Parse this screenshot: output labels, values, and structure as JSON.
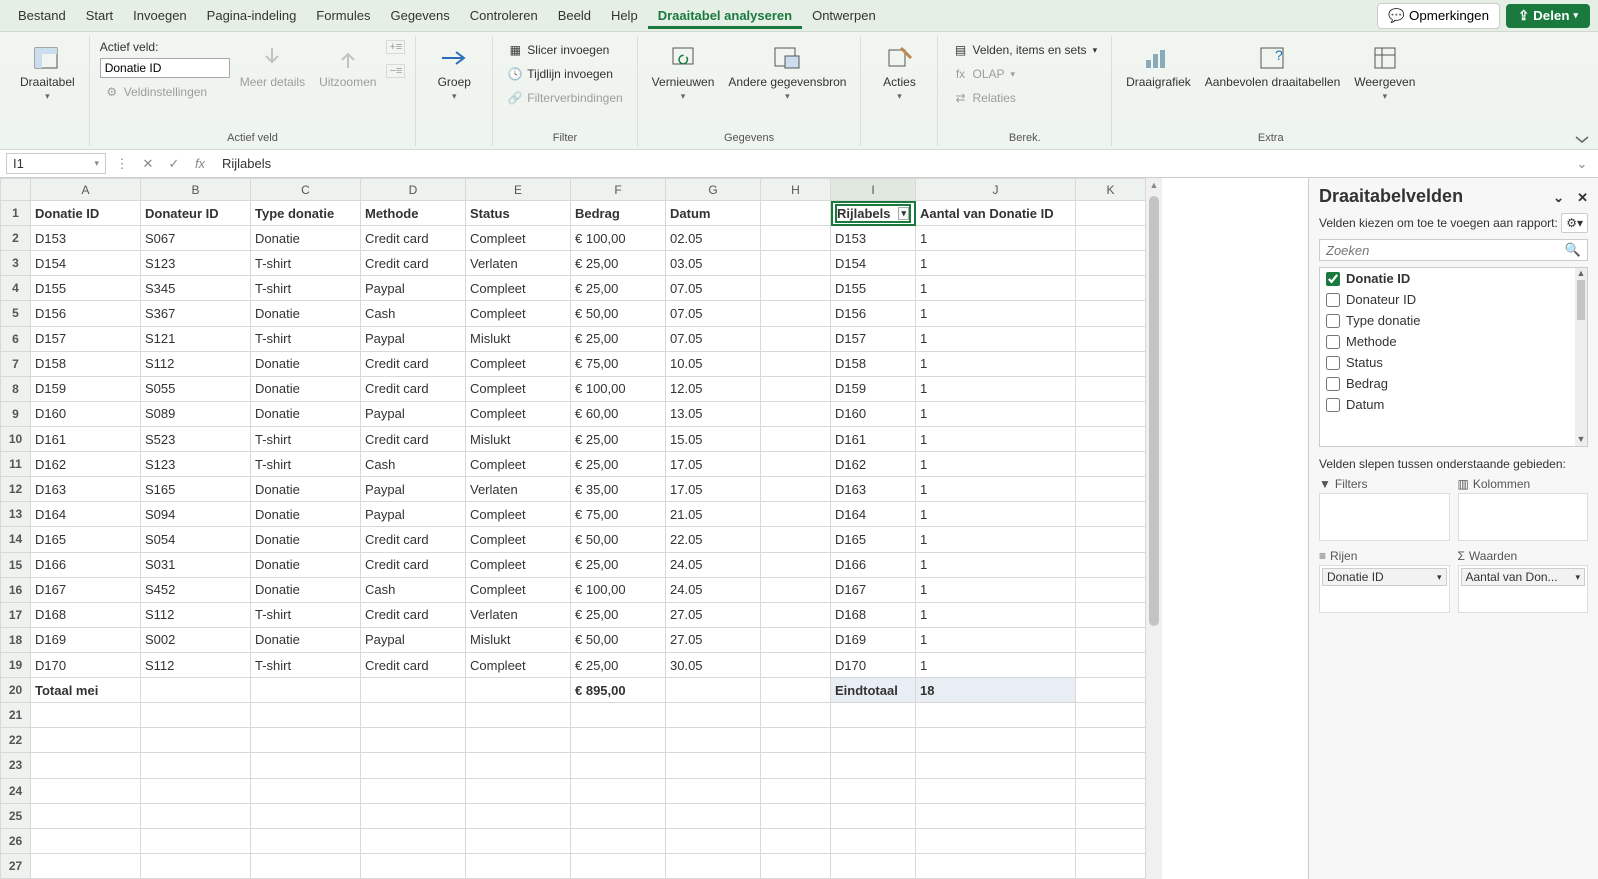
{
  "menu": {
    "items": [
      "Bestand",
      "Start",
      "Invoegen",
      "Pagina-indeling",
      "Formules",
      "Gegevens",
      "Controleren",
      "Beeld",
      "Help",
      "Draaitabel analyseren",
      "Ontwerpen"
    ],
    "active": "Draaitabel analyseren",
    "comments": "Opmerkingen",
    "share": "Delen"
  },
  "ribbon": {
    "g1": {
      "label": "",
      "pivot": "Draaitabel"
    },
    "g2": {
      "label": "Actief veld",
      "activeField": "Actief veld:",
      "fieldValue": "Donatie ID",
      "settings": "Veldinstellingen",
      "more": "Meer details",
      "zoomout": "Uitzoomen"
    },
    "g3": {
      "group": "Groep"
    },
    "g4": {
      "label": "Filter",
      "slicer": "Slicer invoegen",
      "timeline": "Tijdlijn invoegen",
      "connections": "Filterverbindingen"
    },
    "g5": {
      "label": "Gegevens",
      "refresh": "Vernieuwen",
      "otherSource": "Andere gegevensbron"
    },
    "g6": {
      "actions": "Acties"
    },
    "g7": {
      "label": "Berek.",
      "fields": "Velden, items en sets",
      "olap": "OLAP",
      "relations": "Relaties"
    },
    "g8": {
      "label": "Extra",
      "pivotchart": "Draaigrafiek",
      "recommended": "Aanbevolen draaitabellen",
      "show": "Weergeven"
    }
  },
  "formulaBar": {
    "nameBox": "I1",
    "formula": "Rijlabels"
  },
  "columns": [
    "A",
    "B",
    "C",
    "D",
    "E",
    "F",
    "G",
    "H",
    "I",
    "J",
    "K"
  ],
  "headers": {
    "A": "Donatie ID",
    "B": "Donateur ID",
    "C": "Type donatie",
    "D": "Methode",
    "E": "Status",
    "F": "Bedrag",
    "G": "Datum",
    "I": "Rijlabels",
    "J": "Aantal van Donatie ID"
  },
  "rows": [
    {
      "n": 2,
      "A": "D153",
      "B": "S067",
      "C": "Donatie",
      "D": "Credit card",
      "E": "Compleet",
      "F": "€ 100,00",
      "G": "02.05",
      "I": "D153",
      "J": "1"
    },
    {
      "n": 3,
      "A": "D154",
      "B": "S123",
      "C": "T-shirt",
      "D": "Credit card",
      "E": "Verlaten",
      "F": "€ 25,00",
      "G": "03.05",
      "I": "D154",
      "J": "1"
    },
    {
      "n": 4,
      "A": "D155",
      "B": "S345",
      "C": "T-shirt",
      "D": "Paypal",
      "E": "Compleet",
      "F": "€ 25,00",
      "G": "07.05",
      "I": "D155",
      "J": "1"
    },
    {
      "n": 5,
      "A": "D156",
      "B": "S367",
      "C": "Donatie",
      "D": "Cash",
      "E": "Compleet",
      "F": "€ 50,00",
      "G": "07.05",
      "I": "D156",
      "J": "1"
    },
    {
      "n": 6,
      "A": "D157",
      "B": "S121",
      "C": "T-shirt",
      "D": "Paypal",
      "E": "Mislukt",
      "F": "€ 25,00",
      "G": "07.05",
      "I": "D157",
      "J": "1"
    },
    {
      "n": 7,
      "A": "D158",
      "B": "S112",
      "C": "Donatie",
      "D": "Credit card",
      "E": "Compleet",
      "F": "€ 75,00",
      "G": "10.05",
      "I": "D158",
      "J": "1"
    },
    {
      "n": 8,
      "A": "D159",
      "B": "S055",
      "C": "Donatie",
      "D": "Credit card",
      "E": "Compleet",
      "F": "€ 100,00",
      "G": "12.05",
      "I": "D159",
      "J": "1"
    },
    {
      "n": 9,
      "A": "D160",
      "B": "S089",
      "C": "Donatie",
      "D": "Paypal",
      "E": "Compleet",
      "F": "€ 60,00",
      "G": "13.05",
      "I": "D160",
      "J": "1"
    },
    {
      "n": 10,
      "A": "D161",
      "B": "S523",
      "C": "T-shirt",
      "D": "Credit card",
      "E": "Mislukt",
      "F": "€ 25,00",
      "G": "15.05",
      "I": "D161",
      "J": "1"
    },
    {
      "n": 11,
      "A": "D162",
      "B": "S123",
      "C": "T-shirt",
      "D": "Cash",
      "E": "Compleet",
      "F": "€ 25,00",
      "G": "17.05",
      "I": "D162",
      "J": "1"
    },
    {
      "n": 12,
      "A": "D163",
      "B": "S165",
      "C": "Donatie",
      "D": "Paypal",
      "E": "Verlaten",
      "F": "€ 35,00",
      "G": "17.05",
      "I": "D163",
      "J": "1"
    },
    {
      "n": 13,
      "A": "D164",
      "B": "S094",
      "C": "Donatie",
      "D": "Paypal",
      "E": "Compleet",
      "F": "€ 75,00",
      "G": "21.05",
      "I": "D164",
      "J": "1"
    },
    {
      "n": 14,
      "A": "D165",
      "B": "S054",
      "C": "Donatie",
      "D": "Credit card",
      "E": "Compleet",
      "F": "€ 50,00",
      "G": "22.05",
      "I": "D165",
      "J": "1"
    },
    {
      "n": 15,
      "A": "D166",
      "B": "S031",
      "C": "Donatie",
      "D": "Credit card",
      "E": "Compleet",
      "F": "€ 25,00",
      "G": "24.05",
      "I": "D166",
      "J": "1"
    },
    {
      "n": 16,
      "A": "D167",
      "B": "S452",
      "C": "Donatie",
      "D": "Cash",
      "E": "Compleet",
      "F": "€ 100,00",
      "G": "24.05",
      "I": "D167",
      "J": "1"
    },
    {
      "n": 17,
      "A": "D168",
      "B": "S112",
      "C": "T-shirt",
      "D": "Credit card",
      "E": "Verlaten",
      "F": "€ 25,00",
      "G": "27.05",
      "I": "D168",
      "J": "1"
    },
    {
      "n": 18,
      "A": "D169",
      "B": "S002",
      "C": "Donatie",
      "D": "Paypal",
      "E": "Mislukt",
      "F": "€ 50,00",
      "G": "27.05",
      "I": "D169",
      "J": "1"
    },
    {
      "n": 19,
      "A": "D170",
      "B": "S112",
      "C": "T-shirt",
      "D": "Credit card",
      "E": "Compleet",
      "F": "€ 25,00",
      "G": "30.05",
      "I": "D170",
      "J": "1"
    }
  ],
  "totalRow": {
    "n": 20,
    "A": "Totaal mei",
    "F": "€ 895,00",
    "I": "Eindtotaal",
    "J": "18"
  },
  "emptyRows": [
    21,
    22,
    23,
    24,
    25,
    26,
    27
  ],
  "pivotPanel": {
    "title": "Draaitabelvelden",
    "subtitle": "Velden kiezen om toe te voegen aan rapport:",
    "searchPlaceholder": "Zoeken",
    "fields": [
      {
        "label": "Donatie ID",
        "checked": true
      },
      {
        "label": "Donateur ID",
        "checked": false
      },
      {
        "label": "Type donatie",
        "checked": false
      },
      {
        "label": "Methode",
        "checked": false
      },
      {
        "label": "Status",
        "checked": false
      },
      {
        "label": "Bedrag",
        "checked": false
      },
      {
        "label": "Datum",
        "checked": false
      }
    ],
    "dragLabel": "Velden slepen tussen onderstaande gebieden:",
    "zones": {
      "filters": "Filters",
      "columns": "Kolommen",
      "rows": "Rijen",
      "values": "Waarden"
    },
    "rowChip": "Donatie ID",
    "valueChip": "Aantal van Don..."
  }
}
